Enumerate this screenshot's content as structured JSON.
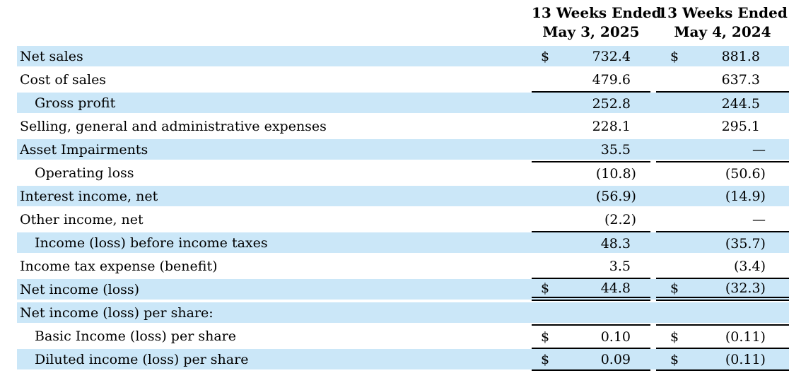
{
  "colors": {
    "row_highlight": "#cbe7f8",
    "text": "#000000",
    "rule": "#000000"
  },
  "table": {
    "currency_symbol": "$",
    "dash": "—",
    "headers": [
      {
        "line1": "13 Weeks Ended",
        "line2": "May 3, 2025"
      },
      {
        "line1": "13 Weeks Ended",
        "line2": "May 4, 2024"
      }
    ],
    "rows": [
      {
        "label": "Net sales",
        "indent": false,
        "shaded": true,
        "dollar": true,
        "values": [
          "732.4",
          "881.8"
        ],
        "rules": {}
      },
      {
        "label": "Cost of sales",
        "indent": false,
        "shaded": false,
        "dollar": false,
        "values": [
          "479.6",
          "637.3"
        ],
        "rules": {}
      },
      {
        "label": "Gross profit",
        "indent": true,
        "shaded": true,
        "dollar": false,
        "values": [
          "252.8",
          "244.5"
        ],
        "rules": {
          "above": true
        }
      },
      {
        "label": "Selling, general and administrative expenses",
        "indent": false,
        "shaded": false,
        "dollar": false,
        "values": [
          "228.1",
          "295.1"
        ],
        "rules": {}
      },
      {
        "label": "Asset Impairments",
        "indent": false,
        "shaded": true,
        "dollar": false,
        "values": [
          "35.5",
          "—"
        ],
        "rules": {}
      },
      {
        "label": "Operating loss",
        "indent": true,
        "shaded": false,
        "dollar": false,
        "values": [
          "(10.8)",
          "(50.6)"
        ],
        "rules": {
          "above": true
        }
      },
      {
        "label": "Interest income, net",
        "indent": false,
        "shaded": true,
        "dollar": false,
        "values": [
          "(56.9)",
          "(14.9)"
        ],
        "rules": {}
      },
      {
        "label": "Other income, net",
        "indent": false,
        "shaded": false,
        "dollar": false,
        "values": [
          "(2.2)",
          "—"
        ],
        "rules": {}
      },
      {
        "label": "Income (loss) before income taxes",
        "indent": true,
        "shaded": true,
        "dollar": false,
        "values": [
          "48.3",
          "(35.7)"
        ],
        "rules": {
          "above": true
        }
      },
      {
        "label": "Income tax expense (benefit)",
        "indent": false,
        "shaded": false,
        "dollar": false,
        "values": [
          "3.5",
          "(3.4)"
        ],
        "rules": {}
      },
      {
        "label": "Net income (loss)",
        "indent": false,
        "shaded": true,
        "dollar": true,
        "values": [
          "44.8",
          "(32.3)"
        ],
        "rules": {
          "above": true,
          "double_below": true
        }
      },
      {
        "label": "Net income (loss) per share:",
        "indent": false,
        "shaded": true,
        "dollar": false,
        "values": [
          "",
          ""
        ],
        "rules": {}
      },
      {
        "label": "Basic Income (loss) per share",
        "indent": true,
        "shaded": false,
        "dollar": true,
        "values": [
          "0.10",
          "(0.11)"
        ],
        "rules": {
          "above": true
        }
      },
      {
        "label": "Diluted income (loss) per share",
        "indent": true,
        "shaded": true,
        "dollar": true,
        "values": [
          "0.09",
          "(0.11)"
        ],
        "rules": {
          "above": true,
          "below": true
        }
      }
    ]
  }
}
